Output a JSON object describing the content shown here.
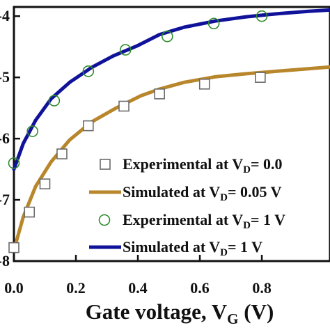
{
  "chart_data": {
    "type": "line",
    "title": "",
    "xlabel": {
      "prefix": "Gate voltage, V",
      "subscript": "G",
      "suffix": " (V)"
    },
    "ylabel": "",
    "xlim": [
      0.0,
      1.02
    ],
    "ylim": [
      -8.0,
      -3.85
    ],
    "x_ticks": [
      {
        "value": 0.0,
        "label": "0.0"
      },
      {
        "value": 0.2,
        "label": "0.2"
      },
      {
        "value": 0.4,
        "label": "0.4"
      },
      {
        "value": 0.6,
        "label": "0.6"
      },
      {
        "value": 0.8,
        "label": "0.8"
      }
    ],
    "y_ticks": [
      {
        "value": -4,
        "label": "-4"
      },
      {
        "value": -5,
        "label": "-5"
      },
      {
        "value": -6,
        "label": "-6"
      },
      {
        "value": -7,
        "label": "-7"
      },
      {
        "value": -8,
        "label": "-8"
      }
    ],
    "grid": false,
    "legend_position": "bottom-right",
    "series": [
      {
        "kind": "scatter",
        "marker": "square",
        "color": "#6b6b6b",
        "legend": {
          "prefix": "Experimental at V",
          "subscript": "D",
          "suffix": "= 0.0"
        },
        "x": [
          0.0,
          0.05,
          0.1,
          0.155,
          0.24,
          0.355,
          0.47,
          0.615,
          0.795
        ],
        "y": [
          -7.78,
          -7.2,
          -6.74,
          -6.25,
          -5.79,
          -5.47,
          -5.27,
          -5.11,
          -5.0
        ]
      },
      {
        "kind": "line",
        "color": "#b8862b",
        "legend": {
          "prefix": "Simulated at V",
          "subscript": "D",
          "suffix": "= 0.05 V"
        },
        "x": [
          0.0,
          0.03,
          0.07,
          0.12,
          0.18,
          0.25,
          0.33,
          0.41,
          0.47,
          0.55,
          0.65,
          0.75,
          0.85,
          0.95,
          1.02
        ],
        "y": [
          -7.82,
          -7.28,
          -6.78,
          -6.38,
          -6.02,
          -5.73,
          -5.5,
          -5.3,
          -5.19,
          -5.08,
          -4.99,
          -4.94,
          -4.9,
          -4.86,
          -4.83
        ]
      },
      {
        "kind": "scatter",
        "marker": "circle",
        "color": "#2e8b2e",
        "legend": {
          "prefix": "Experimental at V",
          "subscript": "D",
          "suffix": "= 1 V"
        },
        "x": [
          0.0,
          0.06,
          0.13,
          0.24,
          0.36,
          0.495,
          0.645,
          0.8
        ],
        "y": [
          -6.4,
          -5.88,
          -5.38,
          -4.9,
          -4.55,
          -4.33,
          -4.12,
          -4.0
        ]
      },
      {
        "kind": "line",
        "color": "#10139a",
        "legend": {
          "prefix": "Simulated at V",
          "subscript": "D",
          "suffix": "= 1 V"
        },
        "x": [
          0.0,
          0.03,
          0.07,
          0.12,
          0.18,
          0.25,
          0.32,
          0.4,
          0.47,
          0.55,
          0.65,
          0.75,
          0.85,
          0.95,
          1.02
        ],
        "y": [
          -6.5,
          -6.08,
          -5.7,
          -5.35,
          -5.08,
          -4.84,
          -4.65,
          -4.48,
          -4.3,
          -4.18,
          -4.08,
          -4.01,
          -3.96,
          -3.92,
          -3.9
        ]
      }
    ]
  }
}
